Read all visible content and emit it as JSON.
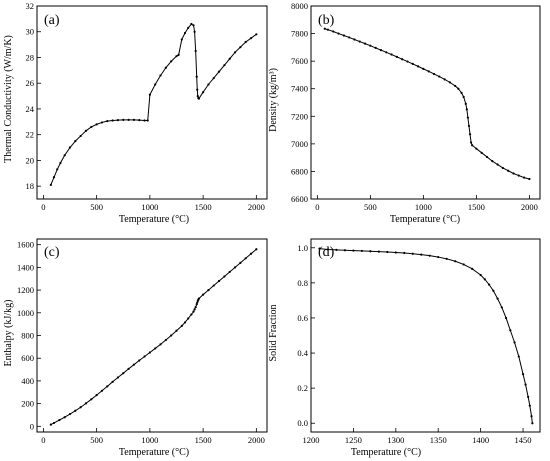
{
  "chart_data": [
    {
      "type": "line",
      "panel_label": "(a)",
      "xlabel": "Temperature (°C)",
      "ylabel": "Thermal Conductivity (W/m/K)",
      "xlim": [
        -60,
        2100
      ],
      "ylim": [
        17,
        32
      ],
      "xticks": [
        0,
        500,
        1000,
        1500,
        2000
      ],
      "yticks": [
        18,
        20,
        22,
        24,
        26,
        28,
        30,
        32
      ],
      "x": [
        70,
        100,
        130,
        160,
        200,
        250,
        300,
        350,
        400,
        450,
        500,
        550,
        600,
        650,
        700,
        750,
        800,
        850,
        900,
        950,
        980,
        1000,
        1050,
        1100,
        1150,
        1200,
        1250,
        1270,
        1300,
        1330,
        1360,
        1390,
        1410,
        1420,
        1430,
        1440,
        1445,
        1450,
        1455,
        1460,
        1500,
        1550,
        1600,
        1650,
        1700,
        1750,
        1800,
        1850,
        1900,
        1950,
        2000
      ],
      "y": [
        18.1,
        18.7,
        19.3,
        19.8,
        20.4,
        21.0,
        21.5,
        21.9,
        22.3,
        22.6,
        22.8,
        22.95,
        23.05,
        23.1,
        23.13,
        23.15,
        23.15,
        23.15,
        23.13,
        23.1,
        23.1,
        25.1,
        25.9,
        26.6,
        27.2,
        27.7,
        28.1,
        28.2,
        29.4,
        29.9,
        30.3,
        30.6,
        30.5,
        30.0,
        28.5,
        26.5,
        25.5,
        25.0,
        24.85,
        24.8,
        25.3,
        25.9,
        26.4,
        26.9,
        27.4,
        27.9,
        28.4,
        28.8,
        29.2,
        29.5,
        29.8
      ]
    },
    {
      "type": "line",
      "panel_label": "(b)",
      "xlabel": "Temperature (°C)",
      "ylabel": "Density (kg/m³)",
      "xlim": [
        -60,
        2100
      ],
      "ylim": [
        6600,
        8000
      ],
      "xticks": [
        0,
        500,
        1000,
        1500,
        2000
      ],
      "yticks": [
        6600,
        6800,
        7000,
        7200,
        7400,
        7600,
        7800,
        8000
      ],
      "x": [
        70,
        100,
        150,
        200,
        250,
        300,
        350,
        400,
        450,
        500,
        550,
        600,
        650,
        700,
        750,
        800,
        850,
        900,
        950,
        1000,
        1050,
        1100,
        1150,
        1200,
        1250,
        1300,
        1330,
        1360,
        1380,
        1400,
        1410,
        1420,
        1430,
        1440,
        1450,
        1460,
        1500,
        1550,
        1600,
        1650,
        1700,
        1750,
        1800,
        1850,
        1900,
        1950,
        2000
      ],
      "y": [
        7835,
        7828,
        7815,
        7800,
        7786,
        7772,
        7757,
        7742,
        7727,
        7712,
        7696,
        7680,
        7664,
        7648,
        7631,
        7614,
        7597,
        7580,
        7562,
        7544,
        7526,
        7507,
        7488,
        7468,
        7446,
        7420,
        7400,
        7370,
        7340,
        7290,
        7250,
        7190,
        7130,
        7070,
        7010,
        6990,
        6965,
        6935,
        6905,
        6875,
        6850,
        6825,
        6805,
        6785,
        6770,
        6755,
        6745
      ]
    },
    {
      "type": "line",
      "panel_label": "(c)",
      "xlabel": "Temperature (°C)",
      "ylabel": "Enthalpy (kJ/kg)",
      "xlim": [
        -60,
        2100
      ],
      "ylim": [
        -50,
        1650
      ],
      "xticks": [
        0,
        500,
        1000,
        1500,
        2000
      ],
      "yticks": [
        0,
        200,
        400,
        600,
        800,
        1000,
        1200,
        1400,
        1600
      ],
      "x": [
        70,
        100,
        150,
        200,
        250,
        300,
        350,
        400,
        450,
        500,
        550,
        600,
        650,
        700,
        750,
        800,
        850,
        900,
        950,
        1000,
        1050,
        1100,
        1150,
        1200,
        1250,
        1300,
        1330,
        1360,
        1390,
        1410,
        1420,
        1430,
        1440,
        1445,
        1450,
        1455,
        1460,
        1500,
        1550,
        1600,
        1650,
        1700,
        1750,
        1800,
        1850,
        1900,
        1950,
        2000
      ],
      "y": [
        15,
        30,
        55,
        80,
        108,
        137,
        168,
        202,
        238,
        275,
        313,
        352,
        392,
        430,
        468,
        506,
        543,
        580,
        615,
        650,
        686,
        722,
        760,
        800,
        842,
        885,
        915,
        950,
        985,
        1010,
        1030,
        1050,
        1075,
        1090,
        1105,
        1115,
        1125,
        1160,
        1200,
        1240,
        1280,
        1320,
        1360,
        1400,
        1440,
        1480,
        1520,
        1560
      ]
    },
    {
      "type": "line",
      "panel_label": "(d)",
      "xlabel": "Temperature (°C)",
      "ylabel": "Solid Fraction",
      "xlim": [
        1200,
        1470
      ],
      "ylim": [
        -0.05,
        1.05
      ],
      "xticks": [
        1200,
        1250,
        1300,
        1350,
        1400,
        1450
      ],
      "yticks": [
        0.0,
        0.2,
        0.4,
        0.6,
        0.8,
        1.0
      ],
      "x": [
        1210,
        1220,
        1230,
        1240,
        1250,
        1260,
        1270,
        1280,
        1290,
        1300,
        1310,
        1320,
        1330,
        1340,
        1350,
        1360,
        1370,
        1380,
        1390,
        1400,
        1405,
        1410,
        1415,
        1420,
        1425,
        1430,
        1435,
        1440,
        1445,
        1450,
        1453,
        1456,
        1458,
        1460,
        1461
      ],
      "y": [
        0.995,
        0.99,
        0.988,
        0.986,
        0.984,
        0.982,
        0.98,
        0.978,
        0.976,
        0.973,
        0.97,
        0.966,
        0.961,
        0.955,
        0.947,
        0.937,
        0.923,
        0.905,
        0.88,
        0.845,
        0.82,
        0.79,
        0.755,
        0.71,
        0.66,
        0.6,
        0.53,
        0.46,
        0.38,
        0.28,
        0.22,
        0.15,
        0.1,
        0.04,
        0.0
      ]
    }
  ]
}
